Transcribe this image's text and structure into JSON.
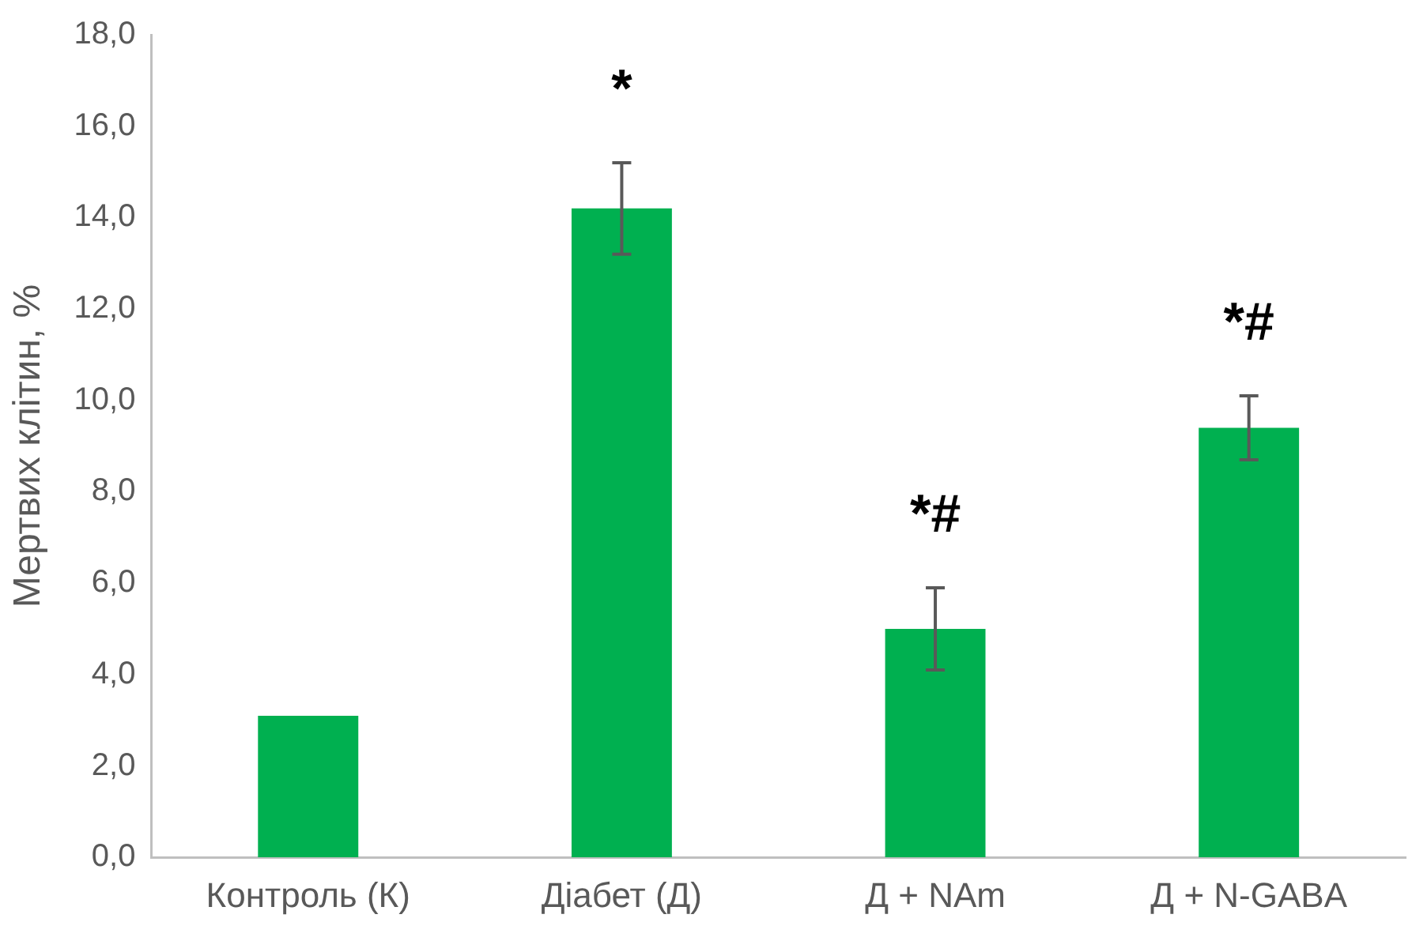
{
  "chart_data": {
    "type": "bar",
    "ylabel": "Мертвих клітин, %",
    "categories": [
      "Контроль (К)",
      "Діабет (Д)",
      "Д + NAm",
      "Д + N-GABA"
    ],
    "values": [
      3.1,
      14.2,
      5.0,
      9.4
    ],
    "color": "#00b050",
    "errors": [
      null,
      1.0,
      0.9,
      0.7
    ],
    "ylim": [
      0,
      18
    ],
    "yticks": [
      {
        "value": 0,
        "label": "0,0"
      },
      {
        "value": 2,
        "label": "2,0"
      },
      {
        "value": 4,
        "label": "4,0"
      },
      {
        "value": 6,
        "label": "6,0"
      },
      {
        "value": 8,
        "label": "8,0"
      },
      {
        "value": 10,
        "label": "10,0"
      },
      {
        "value": 12,
        "label": "12,0"
      },
      {
        "value": 14,
        "label": "14,0"
      },
      {
        "value": 16,
        "label": "16,0"
      },
      {
        "value": 18,
        "label": "18,0"
      }
    ],
    "annotations": [
      "*",
      "*#",
      "*#"
    ],
    "grid": false,
    "legend": false
  }
}
